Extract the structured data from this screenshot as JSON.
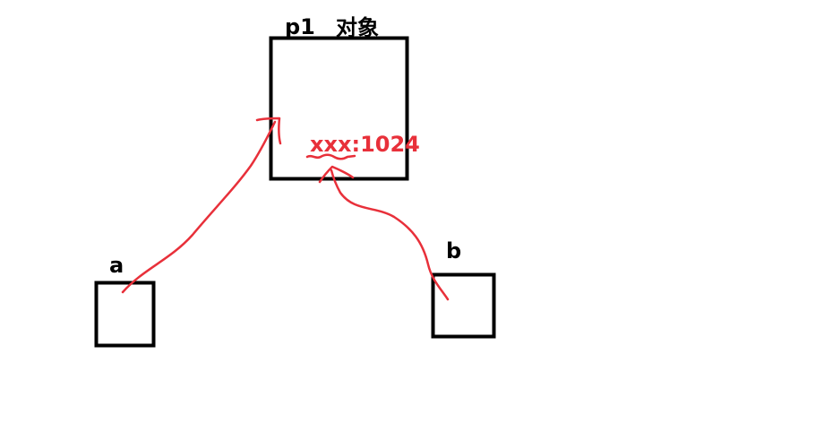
{
  "diagram": {
    "object": {
      "name": "p1",
      "caption": "对象",
      "property_key": "xxx",
      "property_separator": ":",
      "property_value": "1024"
    },
    "variables": [
      {
        "name": "a"
      },
      {
        "name": "b"
      }
    ]
  },
  "colors": {
    "stroke": "#000000",
    "arrow": "#e8303a",
    "text": "#000000",
    "property": "#e8303a"
  }
}
